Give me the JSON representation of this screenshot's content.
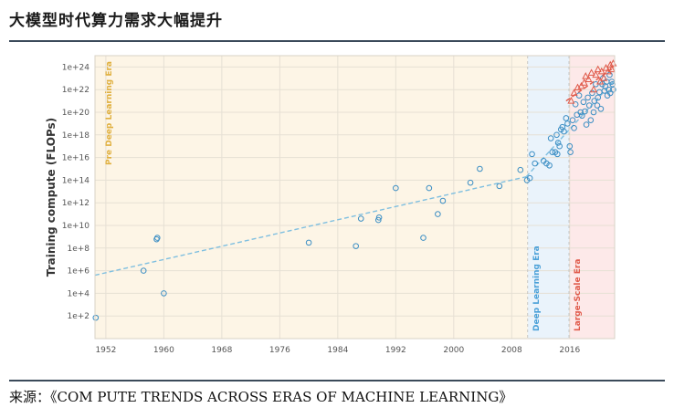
{
  "header": {
    "title": "大模型时代算力需求大幅提升"
  },
  "footer": {
    "source": "来源：《COM PUTE TRENDS ACROSS ERAS OF MACHINE LEARNING》"
  },
  "colors": {
    "pre_dl_bg": "#fdf5e6",
    "dl_bg": "#eaf3fb",
    "ls_bg": "#fde9e9",
    "blue": "#3d8fc4",
    "red": "#e05a4a",
    "trend": "#7fbfe0",
    "pre_label": "#e0b040",
    "dl_label": "#4aa0d8",
    "ls_label": "#e05a4a"
  },
  "chart_data": {
    "type": "scatter",
    "ylabel": "Training compute (FLOPs)",
    "y_scale": "log",
    "ylim": [
      1,
      1e+25
    ],
    "xlim": [
      1950.5,
      2022.2
    ],
    "x_ticks": [
      "1952",
      "1960",
      "1968",
      "1976",
      "1984",
      "1992",
      "2000",
      "2008",
      "2016"
    ],
    "y_ticks": [
      "1e+2",
      "1e+4",
      "1e+6",
      "1e+8",
      "1e+10",
      "1e+12",
      "1e+14",
      "1e+16",
      "1e+18",
      "1e+20",
      "1e+22",
      "1e+24"
    ],
    "eras": [
      {
        "label": "Pre Deep Learning Era",
        "start": 1950.5,
        "end": 2010.2
      },
      {
        "label": "Deep Learning Era",
        "start": 2010.2,
        "end": 2015.9
      },
      {
        "label": "Large-Scale Era",
        "start": 2015.9,
        "end": 2022.2
      }
    ],
    "trend_lines": [
      {
        "name": "",
        "x": [
          1950.5,
          2010
        ],
        "y": [
          400000.0,
          200000000000000.0
        ]
      },
      {
        "name": "",
        "x": [
          2010,
          2022
        ],
        "y": [
          200000000000000.0,
          5e+22
        ]
      },
      {
        "name": "",
        "x": [
          2015.5,
          2022
        ],
        "y": [
          1e+21,
          8e+23
        ]
      }
    ],
    "series": [
      {
        "name": "",
        "marker": "circle",
        "points": [
          [
            1950.6,
            70
          ],
          [
            1957.2,
            1000000.0
          ],
          [
            1959,
            600000000.0
          ],
          [
            1959.1,
            800000000.0
          ],
          [
            1960,
            10000.0
          ],
          [
            1980,
            300000000.0
          ],
          [
            1986.5,
            150000000.0
          ],
          [
            1987.2,
            40000000000.0
          ],
          [
            1989.6,
            30000000000.0
          ],
          [
            1989.7,
            50000000000.0
          ],
          [
            1992,
            20000000000000.0
          ],
          [
            1995.8,
            800000000.0
          ],
          [
            1996.6,
            20000000000000.0
          ],
          [
            1997.8,
            100000000000.0
          ],
          [
            1998.5,
            1500000000000.0
          ],
          [
            2002.3,
            60000000000000.0
          ],
          [
            2003.6,
            1000000000000000.0
          ],
          [
            2006.3,
            30000000000000.0
          ],
          [
            2009.2,
            800000000000000.0
          ],
          [
            2010.1,
            100000000000000.0
          ],
          [
            2010.5,
            150000000000000.0
          ],
          [
            2010.8,
            2e+16
          ],
          [
            2011.2,
            3000000000000000.0
          ],
          [
            2012.4,
            5000000000000000.0
          ],
          [
            2012.8,
            3000000000000000.0
          ],
          [
            2013.2,
            2000000000000000.0
          ],
          [
            2013.4,
            5e+17
          ],
          [
            2013.6,
            3e+16
          ],
          [
            2014,
            3e+16
          ],
          [
            2014.2,
            1e+18
          ],
          [
            2014.3,
            2e+16
          ],
          [
            2014.4,
            2e+17
          ],
          [
            2014.6,
            1e+17
          ],
          [
            2014.8,
            3e+18
          ],
          [
            2015,
            5e+18
          ],
          [
            2015.2,
            2e+18
          ],
          [
            2015.5,
            3e+19
          ],
          [
            2015.7,
            1e+19
          ],
          [
            2016,
            1e+17
          ],
          [
            2016.1,
            3e+16
          ],
          [
            2016.4,
            2e+19
          ],
          [
            2016.6,
            4e+18
          ],
          [
            2016.8,
            5e+20
          ],
          [
            2017,
            6e+19
          ],
          [
            2017.3,
            3e+21
          ],
          [
            2017.5,
            1e+20
          ],
          [
            2017.7,
            5e+19
          ],
          [
            2017.9,
            8e+20
          ],
          [
            2018.1,
            1.2e+20
          ],
          [
            2018.3,
            8e+18
          ],
          [
            2018.5,
            2e+21
          ],
          [
            2018.7,
            4e+20
          ],
          [
            2018.9,
            2e+19
          ],
          [
            2019.1,
            5e+21
          ],
          [
            2019.3,
            1e+20
          ],
          [
            2019.4,
            1e+21
          ],
          [
            2019.6,
            3e+22
          ],
          [
            2019.8,
            4e+20
          ],
          [
            2019.9,
            2e+21
          ],
          [
            2020.1,
            6e+21
          ],
          [
            2020.3,
            2e+20
          ],
          [
            2020.5,
            3e+22
          ],
          [
            2020.6,
            1e+23
          ],
          [
            2020.8,
            8e+21
          ],
          [
            2020.9,
            2e+22
          ],
          [
            2021.1,
            5e+22
          ],
          [
            2021.2,
            3e+21
          ],
          [
            2021.4,
            1e+22
          ],
          [
            2021.5,
            2e+23
          ],
          [
            2021.6,
            5e+21
          ],
          [
            2021.8,
            5e+22
          ],
          [
            2021.9,
            3e+22
          ],
          [
            2022,
            1e+22
          ]
        ]
      },
      {
        "name": "",
        "marker": "triangle",
        "points": [
          [
            2016.2,
            1e+21
          ],
          [
            2016.6,
            5e+21
          ],
          [
            2017.1,
            1.5e+22
          ],
          [
            2017.6,
            2e+22
          ],
          [
            2018,
            4e+22
          ],
          [
            2018.2,
            1.5e+23
          ],
          [
            2018.6,
            8e+22
          ],
          [
            2019,
            3e+23
          ],
          [
            2019.3,
            1e+22
          ],
          [
            2019.6,
            2e+23
          ],
          [
            2019.9,
            6e+23
          ],
          [
            2020.2,
            5e+22
          ],
          [
            2020.4,
            4e+23
          ],
          [
            2020.7,
            1e+23
          ],
          [
            2021,
            8e+23
          ],
          [
            2021.3,
            4e+23
          ],
          [
            2021.6,
            1.5e+24
          ],
          [
            2021.8,
            6e+23
          ],
          [
            2022,
            2e+24
          ]
        ]
      }
    ]
  }
}
